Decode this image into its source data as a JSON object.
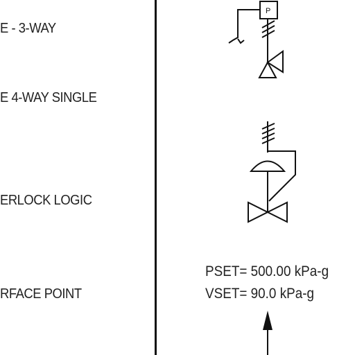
{
  "legend": {
    "items": [
      {
        "label": "E - 3-WAY"
      },
      {
        "label": "E 4-WAY SINGLE"
      },
      {
        "label": "ERLOCK LOGIC"
      },
      {
        "label": "RFACE POINT"
      }
    ]
  },
  "diagram": {
    "pressure_box_letter": "P",
    "setpoints": {
      "pset": "PSET= 500.00 kPa-g",
      "vset": "VSET= 90.0 kPa-g"
    }
  }
}
